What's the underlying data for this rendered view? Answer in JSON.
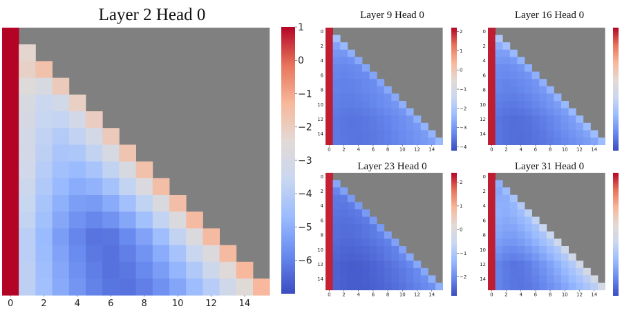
{
  "colors": {
    "masked": "#808080",
    "colormap": [
      "#3b4cc0",
      "#6889ee",
      "#9abbff",
      "#c9d7f0",
      "#e2dad5",
      "#f7b89c",
      "#e7745b",
      "#b40426"
    ]
  },
  "chart_data": [
    {
      "type": "heatmap",
      "title": "Layer 2 Head 0",
      "size": 16,
      "x_ticks": [
        0,
        2,
        4,
        6,
        8,
        10,
        12,
        14
      ],
      "y_ticks": [],
      "colorbar_ticks": [
        1,
        0,
        -1,
        -2,
        -3,
        -4,
        -5,
        -6
      ],
      "colorbar_labels": [
        "1",
        "0",
        "−1",
        "−2",
        "−3",
        "−4",
        "−5",
        "−6"
      ],
      "vmin": -7,
      "vmax": 1,
      "first_col": 1.0,
      "diagonal": [
        0.9,
        -2.3,
        -1.6,
        -1.9,
        -2.1,
        -2.0,
        -1.9,
        -1.7,
        -1.6,
        -1.5,
        -1.5,
        -1.4,
        -1.4,
        -1.4,
        -1.3,
        -1.3
      ],
      "deep": -6.3,
      "trough_col": 6
    },
    {
      "type": "heatmap",
      "title": "Layer 9 Head 0",
      "size": 16,
      "x_ticks": [
        0,
        2,
        4,
        6,
        8,
        10,
        12,
        14
      ],
      "y_ticks": [
        0,
        2,
        4,
        6,
        8,
        10,
        12,
        14
      ],
      "colorbar_ticks": [
        2,
        1,
        0,
        -1,
        -2,
        -3,
        -4
      ],
      "colorbar_labels": [
        "2",
        "1",
        "0",
        "−1",
        "−2",
        "−3",
        "−4"
      ],
      "vmin": -4.2,
      "vmax": 2.2,
      "first_col": 2.0,
      "diagonal": [
        1.2,
        -2.2,
        -2.4,
        -2.6,
        -2.7,
        -2.8,
        -2.8,
        -2.8,
        -2.7,
        -2.7,
        -2.6,
        -2.6,
        -2.6,
        -2.5,
        -2.5,
        -2.4
      ],
      "deep": -3.6,
      "trough_col": 3
    },
    {
      "type": "heatmap",
      "title": "Layer 16 Head 0",
      "size": 16,
      "x_ticks": [
        0,
        2,
        4,
        6,
        8,
        10,
        12,
        14
      ],
      "y_ticks": [
        0,
        2,
        4,
        6,
        8,
        10,
        12,
        14
      ],
      "colorbar_ticks": [],
      "colorbar_labels": [],
      "vmin": -4.2,
      "vmax": 2.2,
      "first_col": 2.0,
      "diagonal": [
        1.1,
        -2.0,
        -2.2,
        -2.4,
        -2.5,
        -2.6,
        -2.6,
        -2.6,
        -2.5,
        -2.5,
        -2.4,
        -2.4,
        -2.4,
        -2.3,
        -2.3,
        -2.3
      ],
      "deep": -3.7,
      "trough_col": 3
    },
    {
      "type": "heatmap",
      "title": "Layer 23 Head 0",
      "size": 16,
      "x_ticks": [
        0,
        2,
        4,
        6,
        8,
        10,
        12,
        14
      ],
      "y_ticks": [
        0,
        2,
        4,
        6,
        8,
        10,
        12,
        14
      ],
      "colorbar_ticks": [
        2,
        1,
        0,
        -1,
        -2
      ],
      "colorbar_labels": [
        "2",
        "1",
        "0",
        "−1",
        "−2"
      ],
      "vmin": -2.8,
      "vmax": 2.4,
      "first_col": 2.2,
      "diagonal": [
        1.0,
        -1.6,
        -1.7,
        -1.8,
        -1.8,
        -1.8,
        -1.8,
        -1.8,
        -1.7,
        -1.7,
        -1.7,
        -1.6,
        -1.6,
        -1.6,
        -1.5,
        -1.5
      ],
      "deep": -2.6,
      "trough_col": 3
    },
    {
      "type": "heatmap",
      "title": "Layer 31 Head 0",
      "size": 16,
      "x_ticks": [
        0,
        2,
        4,
        6,
        8,
        10,
        12,
        14
      ],
      "y_ticks": [
        0,
        2,
        4,
        6,
        8,
        10,
        12,
        14
      ],
      "colorbar_ticks": [],
      "colorbar_labels": [],
      "vmin": -4.2,
      "vmax": 2.2,
      "first_col": 2.0,
      "diagonal": [
        1.0,
        -2.6,
        -2.3,
        -2.1,
        -1.9,
        -1.7,
        -1.6,
        -1.5,
        -1.4,
        -1.3,
        -1.3,
        -1.2,
        -1.2,
        -1.1,
        -1.1,
        -1.1
      ],
      "deep": -3.6,
      "trough_col": 3
    }
  ]
}
